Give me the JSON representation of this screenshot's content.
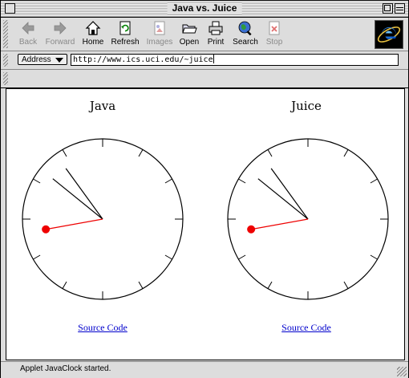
{
  "window": {
    "title": "Java vs. Juice"
  },
  "toolbar": {
    "buttons": [
      {
        "label": "Back",
        "icon": "back-arrow-icon",
        "enabled": false
      },
      {
        "label": "Forward",
        "icon": "forward-arrow-icon",
        "enabled": false
      },
      {
        "label": "Home",
        "icon": "home-icon",
        "enabled": true
      },
      {
        "label": "Refresh",
        "icon": "refresh-icon",
        "enabled": true
      },
      {
        "label": "Images",
        "icon": "images-icon",
        "enabled": false
      },
      {
        "label": "Open",
        "icon": "open-folder-icon",
        "enabled": true
      },
      {
        "label": "Print",
        "icon": "printer-icon",
        "enabled": true
      },
      {
        "label": "Search",
        "icon": "globe-search-icon",
        "enabled": true
      },
      {
        "label": "Stop",
        "icon": "stop-icon",
        "enabled": false
      }
    ],
    "logo": "internet-explorer-logo"
  },
  "address": {
    "label": "Address",
    "url": "http://www.ics.uci.edu/~juice"
  },
  "content": {
    "panels": [
      {
        "title": "Java",
        "link": "Source Code",
        "clock": {
          "hours": 10.3,
          "minutes": 54.0,
          "seconds": 43.3
        }
      },
      {
        "title": "Juice",
        "link": "Source Code",
        "clock": {
          "hours": 10.3,
          "minutes": 54.0,
          "seconds": 43.3
        }
      }
    ]
  },
  "status": {
    "text": "Applet JavaClock started."
  },
  "colors": {
    "second_hand": "#ee0000",
    "link": "#0000cc"
  }
}
